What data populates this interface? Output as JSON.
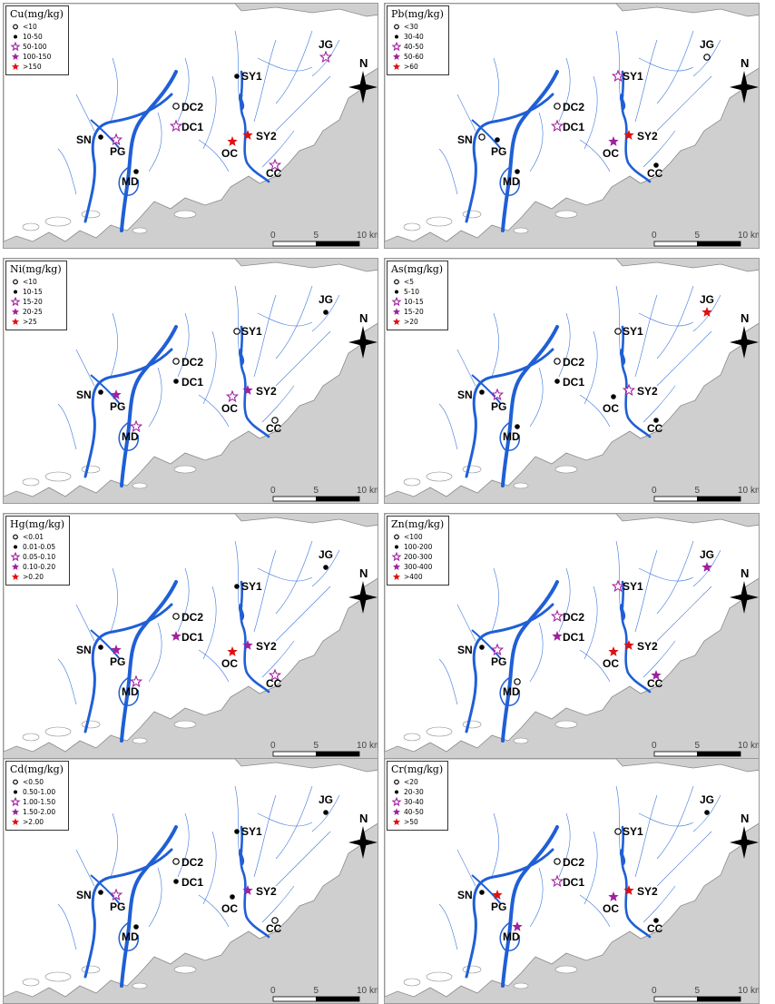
{
  "legend_classes": [
    "open-circle",
    "black-dot",
    "open-star",
    "purple-star",
    "red-star"
  ],
  "colors": {
    "land": "#ffffff",
    "sea": "#cfcfcf",
    "river": "#1f5fd6",
    "purple": "#a020a0",
    "red": "#e01010",
    "border": "#9a9a9a"
  },
  "north_label": "N",
  "scale_labels": [
    "0",
    "5",
    "10",
    "km"
  ],
  "panels": [
    {
      "title": "Cu(mg/kg)",
      "ranges": [
        "<10",
        "10-50",
        "50-100",
        "100-150",
        ">150"
      ],
      "sites": [
        {
          "name": "SN",
          "cls": 1
        },
        {
          "name": "PG",
          "cls": 2
        },
        {
          "name": "MD",
          "cls": 1
        },
        {
          "name": "DC2",
          "cls": 0
        },
        {
          "name": "DC1",
          "cls": 2
        },
        {
          "name": "SY1",
          "cls": 1
        },
        {
          "name": "SY2",
          "cls": 4
        },
        {
          "name": "OC",
          "cls": 4
        },
        {
          "name": "CC",
          "cls": 2
        },
        {
          "name": "JG",
          "cls": 2
        }
      ]
    },
    {
      "title": "Pb(mg/kg)",
      "ranges": [
        "<30",
        "30-40",
        "40-50",
        "50-60",
        ">60"
      ],
      "sites": [
        {
          "name": "SN",
          "cls": 0
        },
        {
          "name": "PG",
          "cls": 1
        },
        {
          "name": "MD",
          "cls": 1
        },
        {
          "name": "DC2",
          "cls": 0
        },
        {
          "name": "DC1",
          "cls": 2
        },
        {
          "name": "SY1",
          "cls": 2
        },
        {
          "name": "SY2",
          "cls": 4
        },
        {
          "name": "OC",
          "cls": 3
        },
        {
          "name": "CC",
          "cls": 1
        },
        {
          "name": "JG",
          "cls": 0
        }
      ]
    },
    {
      "title": "Ni(mg/kg)",
      "ranges": [
        "<10",
        "10-15",
        "15-20",
        "20-25",
        ">25"
      ],
      "sites": [
        {
          "name": "SN",
          "cls": 1
        },
        {
          "name": "PG",
          "cls": 3
        },
        {
          "name": "MD",
          "cls": 2
        },
        {
          "name": "DC2",
          "cls": 0
        },
        {
          "name": "DC1",
          "cls": 1
        },
        {
          "name": "SY1",
          "cls": 0
        },
        {
          "name": "SY2",
          "cls": 3
        },
        {
          "name": "OC",
          "cls": 2
        },
        {
          "name": "CC",
          "cls": 0
        },
        {
          "name": "JG",
          "cls": 1
        }
      ]
    },
    {
      "title": "As(mg/kg)",
      "ranges": [
        "<5",
        "5-10",
        "10-15",
        "15-20",
        ">20"
      ],
      "sites": [
        {
          "name": "SN",
          "cls": 1
        },
        {
          "name": "PG",
          "cls": 2
        },
        {
          "name": "MD",
          "cls": 1
        },
        {
          "name": "DC2",
          "cls": 0
        },
        {
          "name": "DC1",
          "cls": 1
        },
        {
          "name": "SY1",
          "cls": 0
        },
        {
          "name": "SY2",
          "cls": 2
        },
        {
          "name": "OC",
          "cls": 1
        },
        {
          "name": "CC",
          "cls": 1
        },
        {
          "name": "JG",
          "cls": 4
        }
      ]
    },
    {
      "title": "Hg(mg/kg)",
      "ranges": [
        "<0.01",
        "0.01-0.05",
        "0.05-0.10",
        "0.10-0.20",
        ">0.20"
      ],
      "sites": [
        {
          "name": "SN",
          "cls": 1
        },
        {
          "name": "PG",
          "cls": 3
        },
        {
          "name": "MD",
          "cls": 2
        },
        {
          "name": "DC2",
          "cls": 0
        },
        {
          "name": "DC1",
          "cls": 3
        },
        {
          "name": "SY1",
          "cls": 1
        },
        {
          "name": "SY2",
          "cls": 3
        },
        {
          "name": "OC",
          "cls": 4
        },
        {
          "name": "CC",
          "cls": 2
        },
        {
          "name": "JG",
          "cls": 1
        }
      ]
    },
    {
      "title": "Zn(mg/kg)",
      "ranges": [
        "<100",
        "100-200",
        "200-300",
        "300-400",
        ">400"
      ],
      "sites": [
        {
          "name": "SN",
          "cls": 1
        },
        {
          "name": "PG",
          "cls": 2
        },
        {
          "name": "MD",
          "cls": 0
        },
        {
          "name": "DC2",
          "cls": 2
        },
        {
          "name": "DC1",
          "cls": 3
        },
        {
          "name": "SY1",
          "cls": 2
        },
        {
          "name": "SY2",
          "cls": 4
        },
        {
          "name": "OC",
          "cls": 4
        },
        {
          "name": "CC",
          "cls": 3
        },
        {
          "name": "JG",
          "cls": 3
        }
      ]
    },
    {
      "title": "Cd(mg/kg)",
      "ranges": [
        "<0.50",
        "0.50-1.00",
        "1.00-1.50",
        "1.50-2.00",
        ">2.00"
      ],
      "sites": [
        {
          "name": "SN",
          "cls": 1
        },
        {
          "name": "PG",
          "cls": 2
        },
        {
          "name": "MD",
          "cls": 1
        },
        {
          "name": "DC2",
          "cls": 0
        },
        {
          "name": "DC1",
          "cls": 1
        },
        {
          "name": "SY1",
          "cls": 1
        },
        {
          "name": "SY2",
          "cls": 3
        },
        {
          "name": "OC",
          "cls": 1
        },
        {
          "name": "CC",
          "cls": 0
        },
        {
          "name": "JG",
          "cls": 1
        }
      ]
    },
    {
      "title": "Cr(mg/kg)",
      "ranges": [
        "<20",
        "20-30",
        "30-40",
        "40-50",
        ">50"
      ],
      "sites": [
        {
          "name": "SN",
          "cls": 1
        },
        {
          "name": "PG",
          "cls": 4
        },
        {
          "name": "MD",
          "cls": 3
        },
        {
          "name": "DC2",
          "cls": 0
        },
        {
          "name": "DC1",
          "cls": 2
        },
        {
          "name": "SY1",
          "cls": 0
        },
        {
          "name": "SY2",
          "cls": 4
        },
        {
          "name": "OC",
          "cls": 3
        },
        {
          "name": "CC",
          "cls": 1
        },
        {
          "name": "JG",
          "cls": 1
        }
      ]
    }
  ]
}
